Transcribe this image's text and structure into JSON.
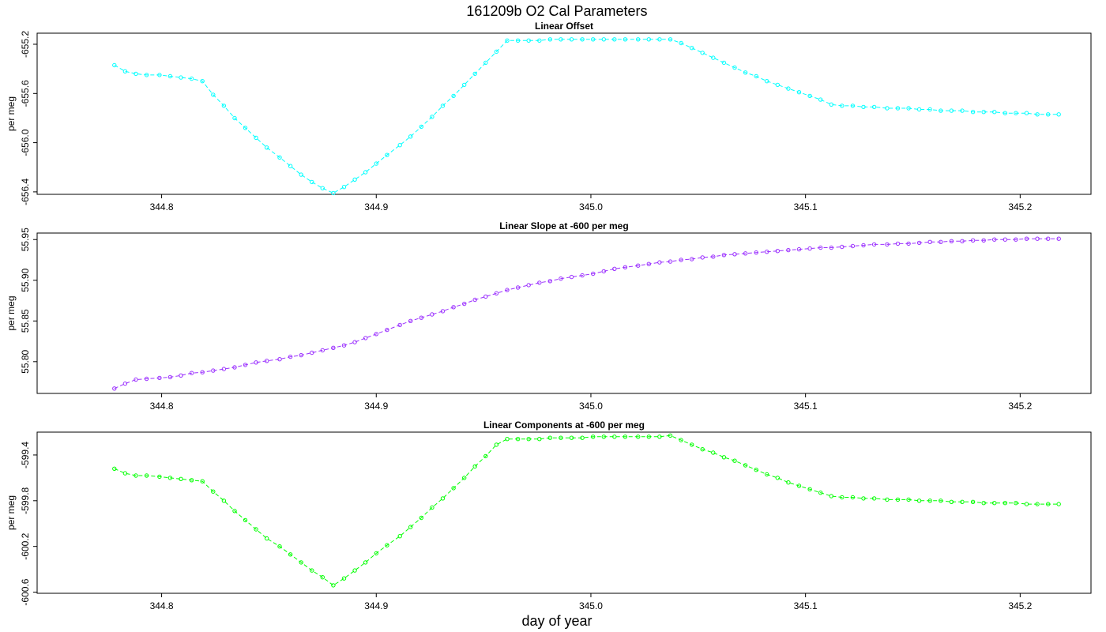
{
  "figure": {
    "title": "161209b   O2 Cal Parameters",
    "xlabel": "day of year"
  },
  "chart_data": [
    {
      "type": "line",
      "title": "Linear Offset",
      "ylabel": "per meg",
      "xlim": [
        344.742,
        345.233
      ],
      "ylim": [
        -656.42,
        -655.11
      ],
      "xticks": [
        344.8,
        344.9,
        345.0,
        345.1,
        345.2
      ],
      "xtick_labels": [
        "344.8",
        "344.9",
        "345.0",
        "345.1",
        "345.2"
      ],
      "yticks": [
        -656.4,
        -656.0,
        -655.6,
        -655.2
      ],
      "ytick_labels": [
        "-656.4",
        "-656.0",
        "-655.6",
        "-655.2"
      ],
      "color": "#00ffff",
      "markers": "circle",
      "linestyle": "dashed",
      "series": [
        {
          "x": [
            344.778,
            344.783,
            344.788,
            344.793,
            344.799,
            344.804,
            344.809,
            344.814,
            344.819,
            344.824,
            344.829,
            344.834,
            344.839,
            344.844,
            344.849,
            344.855,
            344.86,
            344.865,
            344.87,
            344.875,
            344.88,
            344.885,
            344.89,
            344.895,
            344.9,
            344.905,
            344.911,
            344.916,
            344.921,
            344.926,
            344.931,
            344.936,
            344.941,
            344.946,
            344.951,
            344.956,
            344.961,
            344.966,
            344.971,
            344.976,
            344.981,
            344.986,
            344.991,
            344.996,
            345.001,
            345.006,
            345.011,
            345.016,
            345.022,
            345.027,
            345.032,
            345.037,
            345.042,
            345.047,
            345.052,
            345.057,
            345.062,
            345.067,
            345.072,
            345.077,
            345.082,
            345.087,
            345.092,
            345.097,
            345.102,
            345.107,
            345.112,
            345.117,
            345.122,
            345.127,
            345.132,
            345.138,
            345.143,
            345.148,
            345.153,
            345.158,
            345.163,
            345.168,
            345.173,
            345.178,
            345.183,
            345.188,
            345.193,
            345.198,
            345.203,
            345.208,
            345.213,
            345.218
          ],
          "y": [
            -655.37,
            -655.42,
            -655.44,
            -655.45,
            -655.45,
            -655.46,
            -655.47,
            -655.48,
            -655.5,
            -655.61,
            -655.7,
            -655.8,
            -655.88,
            -655.96,
            -656.04,
            -656.12,
            -656.19,
            -656.26,
            -656.32,
            -656.37,
            -656.41,
            -656.36,
            -656.3,
            -656.24,
            -656.17,
            -656.1,
            -656.02,
            -655.95,
            -655.87,
            -655.79,
            -655.7,
            -655.62,
            -655.53,
            -655.44,
            -655.35,
            -655.26,
            -655.17,
            -655.17,
            -655.17,
            -655.17,
            -655.16,
            -655.16,
            -655.16,
            -655.16,
            -655.16,
            -655.16,
            -655.16,
            -655.16,
            -655.16,
            -655.16,
            -655.16,
            -655.16,
            -655.19,
            -655.23,
            -655.27,
            -655.31,
            -655.35,
            -655.39,
            -655.43,
            -655.46,
            -655.5,
            -655.53,
            -655.56,
            -655.59,
            -655.62,
            -655.65,
            -655.69,
            -655.7,
            -655.7,
            -655.71,
            -655.71,
            -655.72,
            -655.72,
            -655.72,
            -655.73,
            -655.73,
            -655.74,
            -655.74,
            -655.74,
            -655.75,
            -655.75,
            -655.75,
            -655.76,
            -655.76,
            -655.76,
            -655.77,
            -655.77,
            -655.77
          ]
        }
      ]
    },
    {
      "type": "line",
      "title": "Linear Slope at -600 per meg",
      "ylabel": "per meg",
      "xlim": [
        344.742,
        345.233
      ],
      "ylim": [
        55.761,
        55.958
      ],
      "xticks": [
        344.8,
        344.9,
        345.0,
        345.1,
        345.2
      ],
      "xtick_labels": [
        "344.8",
        "344.9",
        "345.0",
        "345.1",
        "345.2"
      ],
      "yticks": [
        55.8,
        55.85,
        55.9,
        55.95
      ],
      "ytick_labels": [
        "55.80",
        "55.85",
        "55.90",
        "55.95"
      ],
      "color": "#9b30ff",
      "markers": "circle",
      "linestyle": "dashed",
      "series": [
        {
          "x": [
            344.778,
            344.783,
            344.788,
            344.793,
            344.799,
            344.804,
            344.809,
            344.814,
            344.819,
            344.824,
            344.829,
            344.834,
            344.839,
            344.844,
            344.849,
            344.855,
            344.86,
            344.865,
            344.87,
            344.875,
            344.88,
            344.885,
            344.89,
            344.895,
            344.9,
            344.905,
            344.911,
            344.916,
            344.921,
            344.926,
            344.931,
            344.936,
            344.941,
            344.946,
            344.951,
            344.956,
            344.961,
            344.966,
            344.971,
            344.976,
            344.981,
            344.986,
            344.991,
            344.996,
            345.001,
            345.006,
            345.011,
            345.016,
            345.022,
            345.027,
            345.032,
            345.037,
            345.042,
            345.047,
            345.052,
            345.057,
            345.062,
            345.067,
            345.072,
            345.077,
            345.082,
            345.087,
            345.092,
            345.097,
            345.102,
            345.107,
            345.112,
            345.117,
            345.122,
            345.127,
            345.132,
            345.138,
            345.143,
            345.148,
            345.153,
            345.158,
            345.163,
            345.168,
            345.173,
            345.178,
            345.183,
            345.188,
            345.193,
            345.198,
            345.203,
            345.208,
            345.213,
            345.218
          ],
          "y": [
            55.767,
            55.773,
            55.778,
            55.779,
            55.78,
            55.781,
            55.783,
            55.786,
            55.787,
            55.789,
            55.791,
            55.793,
            55.796,
            55.799,
            55.801,
            55.803,
            55.806,
            55.808,
            55.811,
            55.814,
            55.817,
            55.82,
            55.824,
            55.829,
            55.834,
            55.839,
            55.845,
            55.85,
            55.854,
            55.858,
            55.862,
            55.867,
            55.871,
            55.876,
            55.88,
            55.884,
            55.888,
            55.891,
            55.894,
            55.897,
            55.899,
            55.902,
            55.904,
            55.906,
            55.908,
            55.911,
            55.914,
            55.916,
            55.918,
            55.92,
            55.922,
            55.923,
            55.925,
            55.926,
            55.928,
            55.929,
            55.931,
            55.932,
            55.933,
            55.934,
            55.935,
            55.936,
            55.937,
            55.938,
            55.939,
            55.94,
            55.94,
            55.941,
            55.942,
            55.943,
            55.944,
            55.944,
            55.945,
            55.945,
            55.946,
            55.947,
            55.947,
            55.948,
            55.948,
            55.949,
            55.949,
            55.95,
            55.95,
            55.95,
            55.951,
            55.951,
            55.951,
            55.951
          ]
        }
      ]
    },
    {
      "type": "line",
      "title": "Linear Components at -600 per meg",
      "ylabel": "per meg",
      "xlim": [
        344.742,
        345.233
      ],
      "ylim": [
        -600.61,
        -599.2
      ],
      "xticks": [
        344.8,
        344.9,
        345.0,
        345.1,
        345.2
      ],
      "xtick_labels": [
        "344.8",
        "344.9",
        "345.0",
        "345.1",
        "345.2"
      ],
      "yticks": [
        -600.6,
        -600.2,
        -599.8,
        -599.4
      ],
      "ytick_labels": [
        "-600.6",
        "-600.2",
        "-599.8",
        "-599.4"
      ],
      "color": "#00ff00",
      "markers": "circle",
      "linestyle": "dashed",
      "series": [
        {
          "x": [
            344.778,
            344.783,
            344.788,
            344.793,
            344.799,
            344.804,
            344.809,
            344.814,
            344.819,
            344.824,
            344.829,
            344.834,
            344.839,
            344.844,
            344.849,
            344.855,
            344.86,
            344.865,
            344.87,
            344.875,
            344.88,
            344.885,
            344.89,
            344.895,
            344.9,
            344.905,
            344.911,
            344.916,
            344.921,
            344.926,
            344.931,
            344.936,
            344.941,
            344.946,
            344.951,
            344.956,
            344.961,
            344.966,
            344.971,
            344.976,
            344.981,
            344.986,
            344.991,
            344.996,
            345.001,
            345.006,
            345.011,
            345.016,
            345.022,
            345.027,
            345.032,
            345.037,
            345.042,
            345.047,
            345.052,
            345.057,
            345.062,
            345.067,
            345.072,
            345.077,
            345.082,
            345.087,
            345.092,
            345.097,
            345.102,
            345.107,
            345.112,
            345.117,
            345.122,
            345.127,
            345.132,
            345.138,
            345.143,
            345.148,
            345.153,
            345.158,
            345.163,
            345.168,
            345.173,
            345.178,
            345.183,
            345.188,
            345.193,
            345.198,
            345.203,
            345.208,
            345.213,
            345.218
          ],
          "y": [
            -599.52,
            -599.56,
            -599.58,
            -599.58,
            -599.59,
            -599.6,
            -599.61,
            -599.62,
            -599.63,
            -599.72,
            -599.8,
            -599.89,
            -599.97,
            -600.05,
            -600.13,
            -600.2,
            -600.27,
            -600.34,
            -600.41,
            -600.47,
            -600.54,
            -600.48,
            -600.41,
            -600.34,
            -600.26,
            -600.19,
            -600.11,
            -600.03,
            -599.95,
            -599.86,
            -599.78,
            -599.69,
            -599.6,
            -599.5,
            -599.41,
            -599.31,
            -599.26,
            -599.26,
            -599.26,
            -599.26,
            -599.25,
            -599.25,
            -599.25,
            -599.25,
            -599.24,
            -599.24,
            -599.24,
            -599.24,
            -599.24,
            -599.24,
            -599.24,
            -599.23,
            -599.27,
            -599.31,
            -599.35,
            -599.38,
            -599.42,
            -599.45,
            -599.49,
            -599.53,
            -599.57,
            -599.6,
            -599.64,
            -599.67,
            -599.7,
            -599.73,
            -599.76,
            -599.77,
            -599.77,
            -599.78,
            -599.78,
            -599.79,
            -599.79,
            -599.79,
            -599.8,
            -599.8,
            -599.8,
            -599.81,
            -599.81,
            -599.81,
            -599.82,
            -599.82,
            -599.82,
            -599.82,
            -599.83,
            -599.83,
            -599.83,
            -599.83
          ]
        }
      ]
    }
  ]
}
